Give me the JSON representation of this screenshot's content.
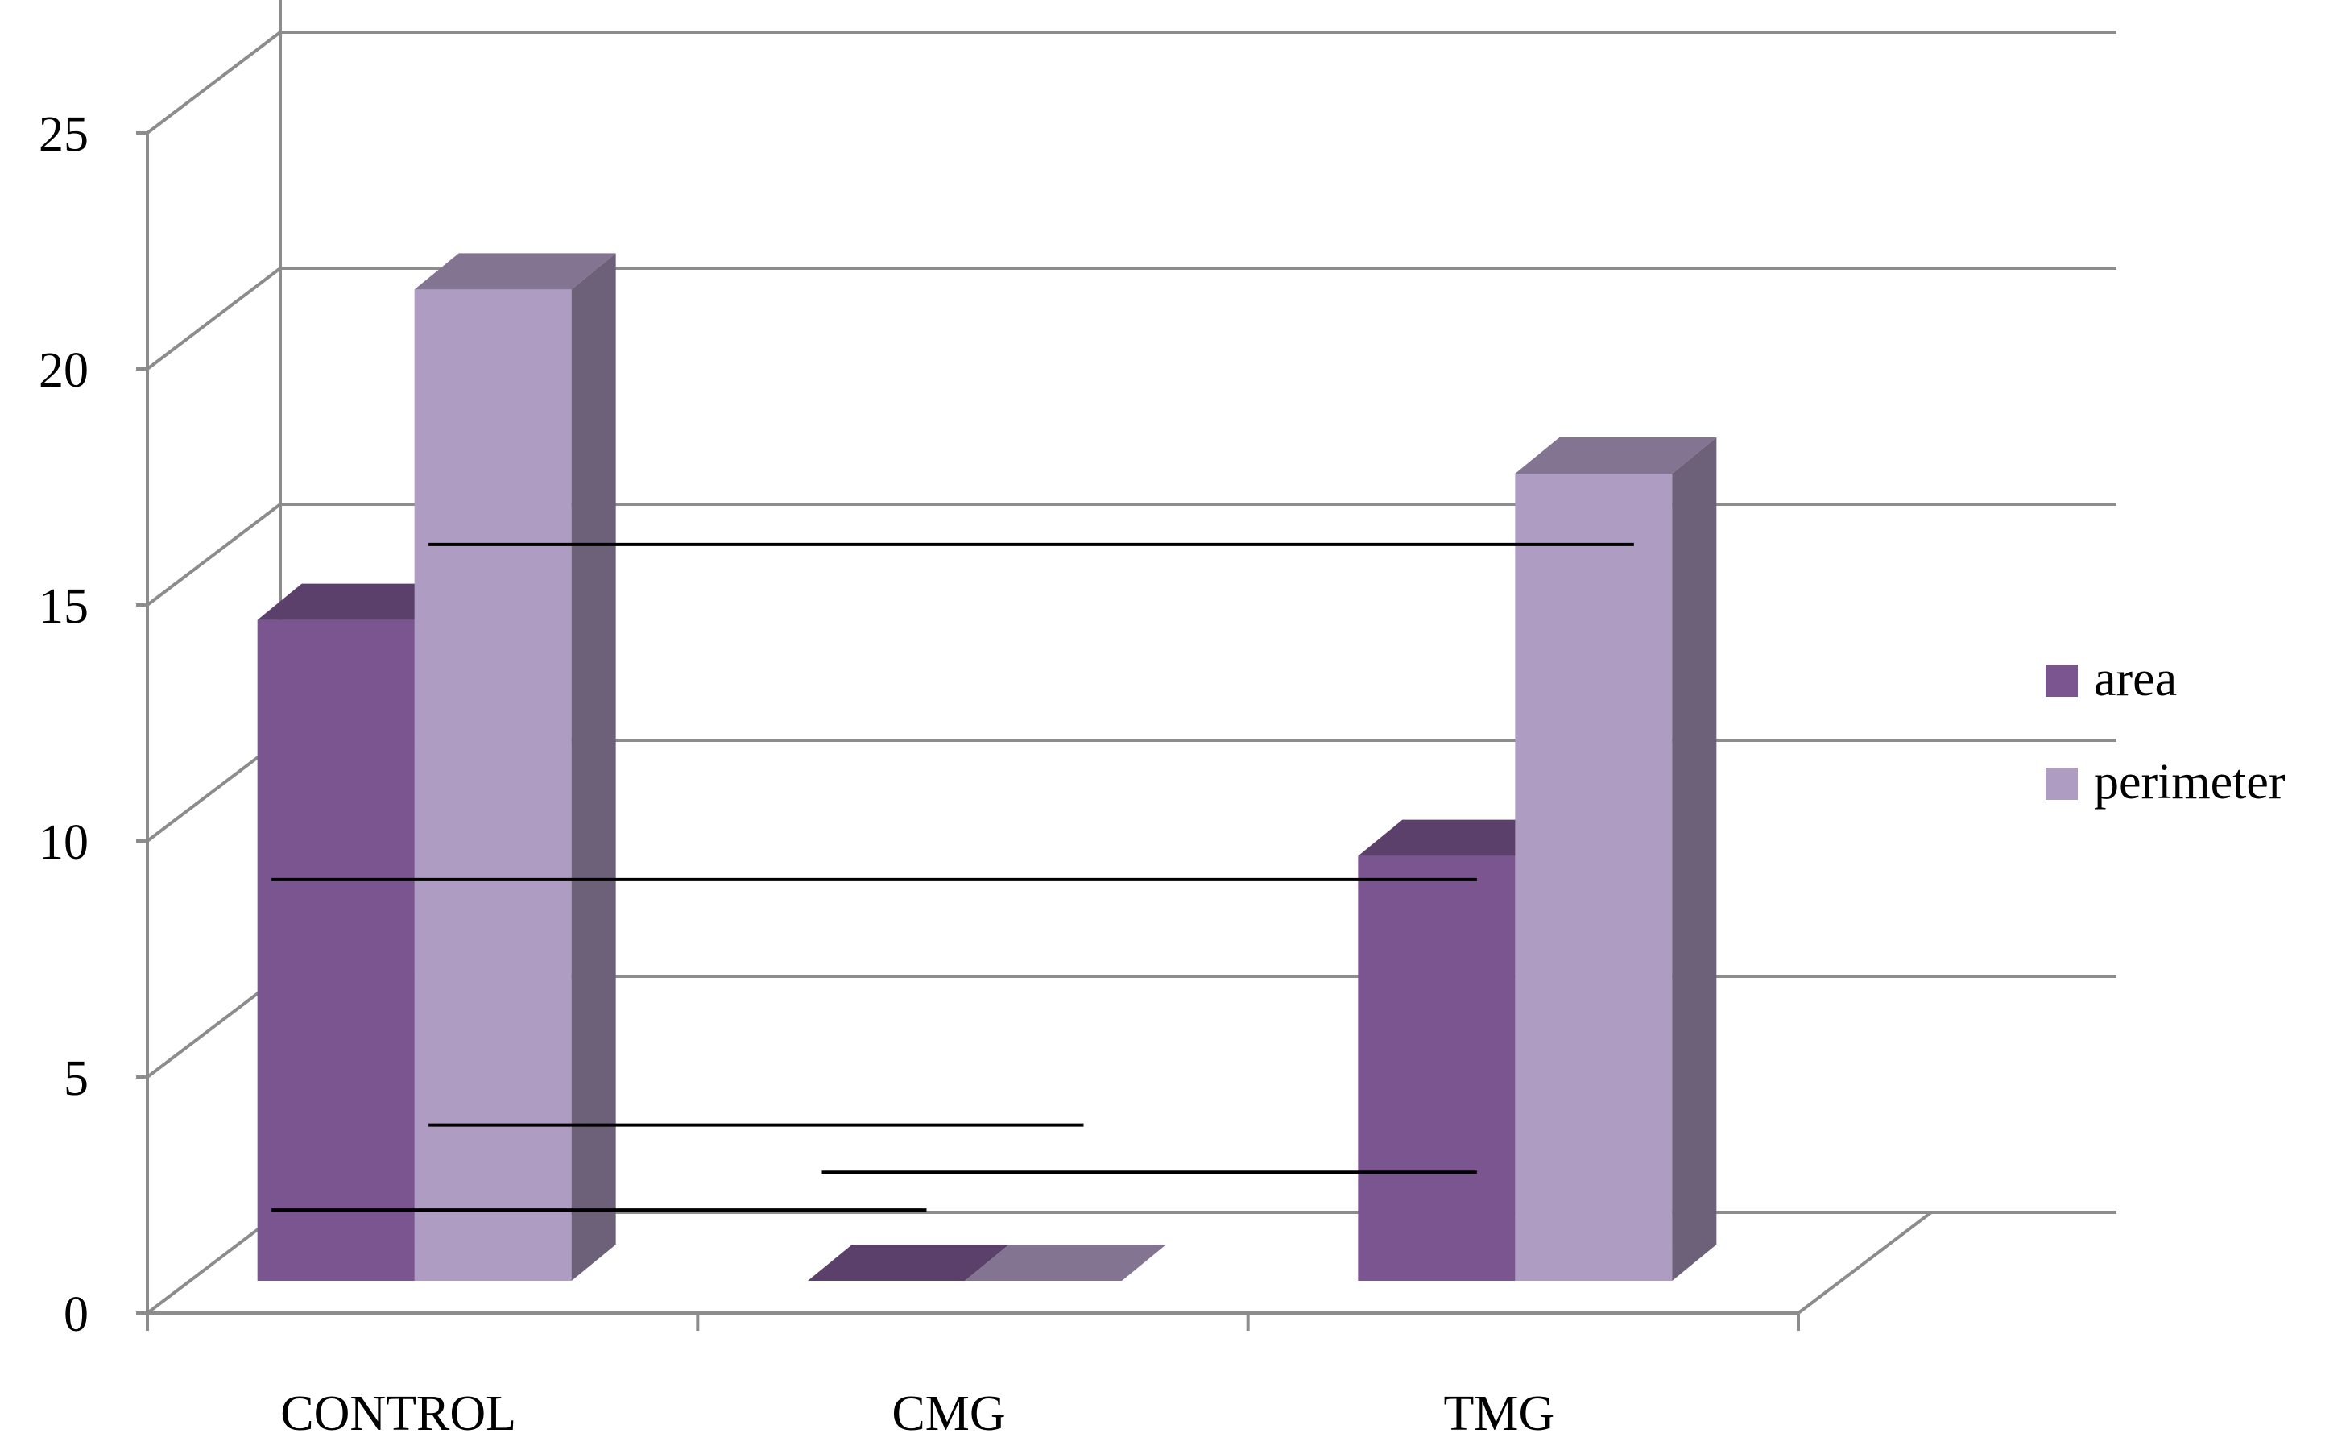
{
  "chart_data": {
    "type": "bar",
    "style": "3d-clustered-column",
    "categories": [
      "CONTROL",
      "CMG",
      "TMG"
    ],
    "series": [
      {
        "name": "area",
        "values": [
          14.0,
          0.0,
          9.0
        ],
        "color": "#7B5590"
      },
      {
        "name": "perimeter",
        "values": [
          21.0,
          0.0,
          17.1
        ],
        "color": "#AF9CC3"
      }
    ],
    "y_ticks": [
      "0",
      "5",
      "10",
      "15",
      "20",
      "25"
    ],
    "ylim": [
      0,
      25
    ],
    "grid": true,
    "legend_position": "right",
    "title": "",
    "xlabel": "",
    "ylabel": "",
    "significance_bars": [
      {
        "from": "CONTROL",
        "to": "TMG",
        "series": "perimeter",
        "level": 15.6
      },
      {
        "from": "CONTROL",
        "to": "TMG",
        "series": "area",
        "level": 8.5
      },
      {
        "from": "CONTROL",
        "to": "CMG",
        "series": "perimeter",
        "level": 3.3
      },
      {
        "from": "CMG",
        "to": "TMG",
        "series": "area",
        "level": 2.3
      },
      {
        "from": "CONTROL",
        "to": "CMG",
        "series": "area",
        "level": 1.5
      }
    ]
  }
}
